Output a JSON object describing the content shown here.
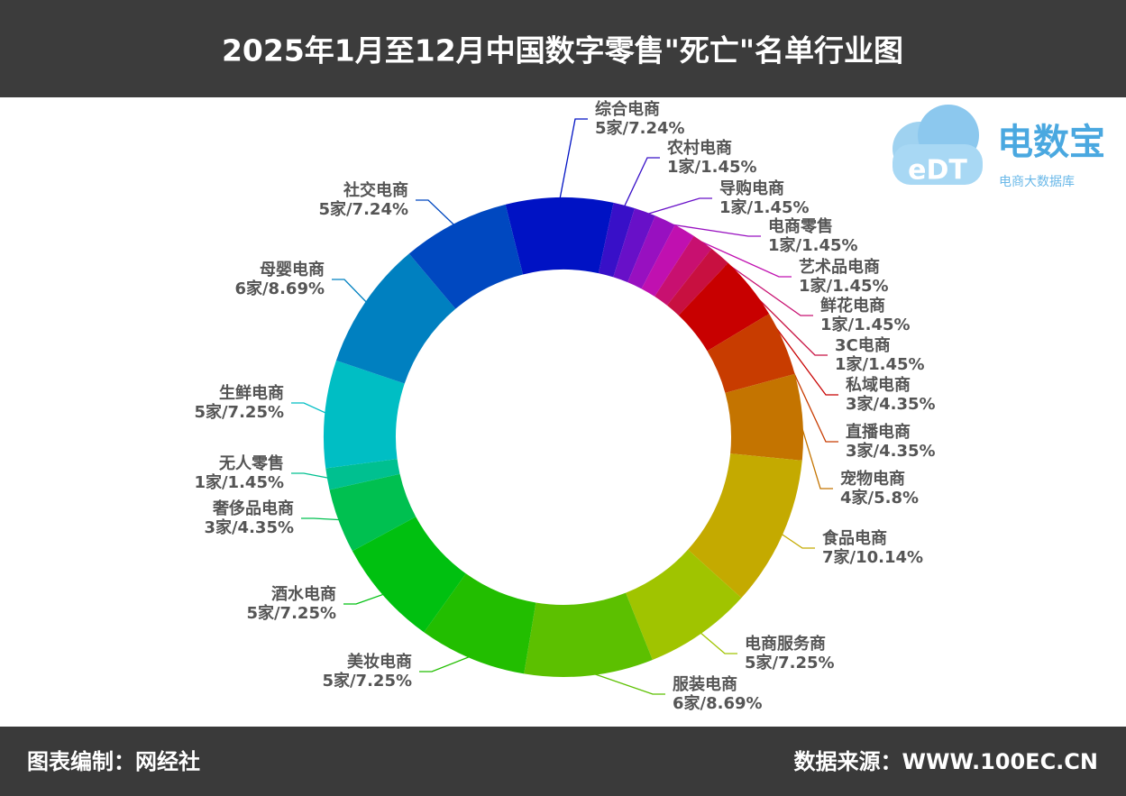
{
  "chart_data": {
    "type": "donut",
    "title": "2025年1月至12月中国数字零售\"死亡\"名单行业图",
    "categories": [
      "综合电商",
      "农村电商",
      "导购电商",
      "电商零售",
      "艺术品电商",
      "鲜花电商",
      "3C电商",
      "私域电商",
      "直播电商",
      "宠物电商",
      "食品电商",
      "电商服务商",
      "服装电商",
      "美妆电商",
      "酒水电商",
      "奢侈品电商",
      "无人零售",
      "生鲜电商",
      "母婴电商",
      "社交电商"
    ],
    "values": [
      7.24,
      1.45,
      1.45,
      1.45,
      1.45,
      1.45,
      1.45,
      4.35,
      4.35,
      5.8,
      10.14,
      7.25,
      8.69,
      7.25,
      7.25,
      4.35,
      1.45,
      7.25,
      8.69,
      7.24
    ],
    "counts": [
      5,
      1,
      1,
      1,
      1,
      1,
      1,
      3,
      3,
      4,
      7,
      5,
      6,
      5,
      5,
      3,
      1,
      5,
      6,
      5
    ],
    "value_labels": [
      "5家/7.24%",
      "1家/1.45%",
      "1家/1.45%",
      "1家/1.45%",
      "1家/1.45%",
      "1家/1.45%",
      "1家/1.45%",
      "3家/4.35%",
      "3家/4.35%",
      "4家/5.8%",
      "7家/10.14%",
      "5家/7.25%",
      "6家/8.69%",
      "5家/7.25%",
      "5家/7.25%",
      "3家/4.35%",
      "1家/1.45%",
      "5家/7.25%",
      "6家/8.69%",
      "5家/7.24%"
    ],
    "colors": [
      "#0012c4",
      "#3810c8",
      "#6810c8",
      "#9810c0",
      "#c010b0",
      "#c81070",
      "#c81040",
      "#c80000",
      "#c83c00",
      "#c47400",
      "#c4aa00",
      "#a0c400",
      "#5cc000",
      "#22be00",
      "#00c010",
      "#00c050",
      "#00c090",
      "#00bec4",
      "#0080c0",
      "#0048c0"
    ]
  },
  "logo": {
    "name": "电数宝",
    "tagline": "电商大数据库",
    "mark": "eDT"
  },
  "footer": {
    "left": "图表编制：网经社",
    "right": "数据来源：WWW.100EC.CN"
  }
}
